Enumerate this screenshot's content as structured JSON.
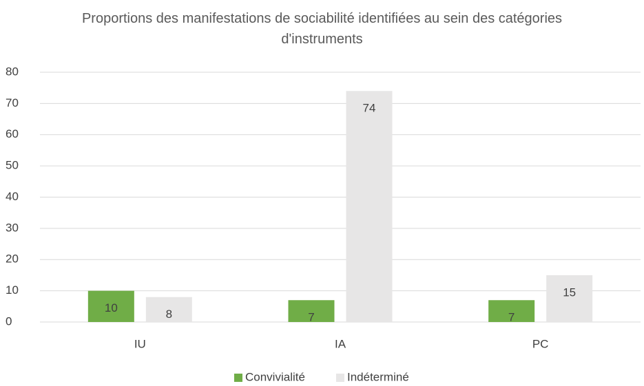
{
  "chart_data": {
    "type": "bar",
    "title": "Proportions des manifestations de sociabilité identifiées au sein des catégories d'instruments",
    "categories": [
      "IU",
      "IA",
      "PC"
    ],
    "series": [
      {
        "name": "Convivialité",
        "color": "#70ad47",
        "values": [
          10,
          7,
          7
        ]
      },
      {
        "name": "Indéterminé",
        "color": "#e7e6e6",
        "values": [
          8,
          74,
          15
        ]
      }
    ],
    "ylim": [
      0,
      80
    ],
    "yticks": [
      0,
      10,
      20,
      30,
      40,
      50,
      60,
      70,
      80
    ],
    "grid": true,
    "legend": "bottom"
  }
}
